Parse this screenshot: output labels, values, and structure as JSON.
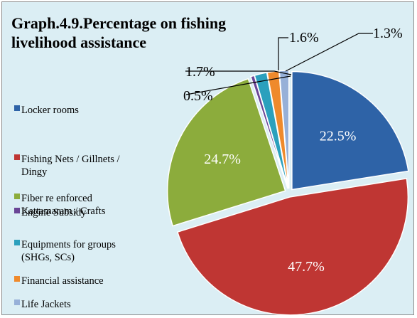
{
  "chart_data": {
    "type": "pie",
    "title_lines": [
      "Graph.4.9.Percentage on fishing",
      "livelihood assistance"
    ],
    "slices": [
      {
        "legend_lines": [
          "Locker rooms"
        ],
        "value": 22.5,
        "label": "22.5%",
        "color": "#2e63a7",
        "label_pos": "inside"
      },
      {
        "legend_lines": [
          "Fishing Nets / Gillnets /",
          "Dingy"
        ],
        "value": 47.7,
        "label": "47.7%",
        "color": "#bf3633",
        "label_pos": "inside"
      },
      {
        "legend_lines": [
          "Fiber re enforced",
          "Kattamaram / Crafts"
        ],
        "value": 24.7,
        "label": "24.7%",
        "color": "#8cac3c",
        "label_pos": "inside"
      },
      {
        "legend_lines": [
          "Engine Subsidy"
        ],
        "value": 0.5,
        "label": "0.5%",
        "color": "#6a4596",
        "label_pos": "outside"
      },
      {
        "legend_lines": [
          "Equipments for groups",
          "(SHGs, SCs)"
        ],
        "value": 1.7,
        "label": "1.7%",
        "color": "#2ba0bd",
        "label_pos": "outside"
      },
      {
        "legend_lines": [
          "Financial assistance"
        ],
        "value": 1.6,
        "label": "1.6%",
        "color": "#ef8a2c",
        "label_pos": "outside"
      },
      {
        "legend_lines": [
          "Life Jackets"
        ],
        "value": 1.3,
        "label": "1.3%",
        "color": "#97b0d8",
        "label_pos": "outside"
      }
    ],
    "legend_position": "left",
    "start_angle_deg": 0,
    "direction": "clockwise",
    "exploded": true
  }
}
